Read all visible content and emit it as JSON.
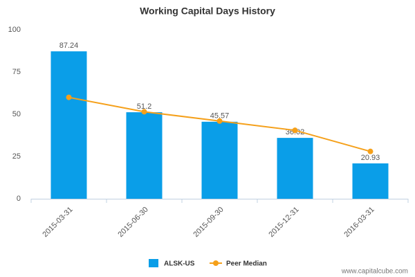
{
  "chart_data": {
    "type": "bar",
    "title": "Working Capital Days History",
    "categories": [
      "2015-03-31",
      "2015-06-30",
      "2015-09-30",
      "2015-12-31",
      "2016-03-31"
    ],
    "series": [
      {
        "name": "ALSK-US",
        "type": "bar",
        "color": "#0a9ee8",
        "values": [
          87.24,
          51.2,
          45.57,
          36.02,
          20.93
        ]
      },
      {
        "name": "Peer Median",
        "type": "line",
        "color": "#f5a01a",
        "values": [
          60,
          51.5,
          46,
          40.5,
          28
        ]
      }
    ],
    "ylim": [
      0,
      100
    ],
    "yticks": [
      0,
      25,
      50,
      75,
      100
    ],
    "grid": false,
    "watermark": "www.capitalcube.com"
  }
}
